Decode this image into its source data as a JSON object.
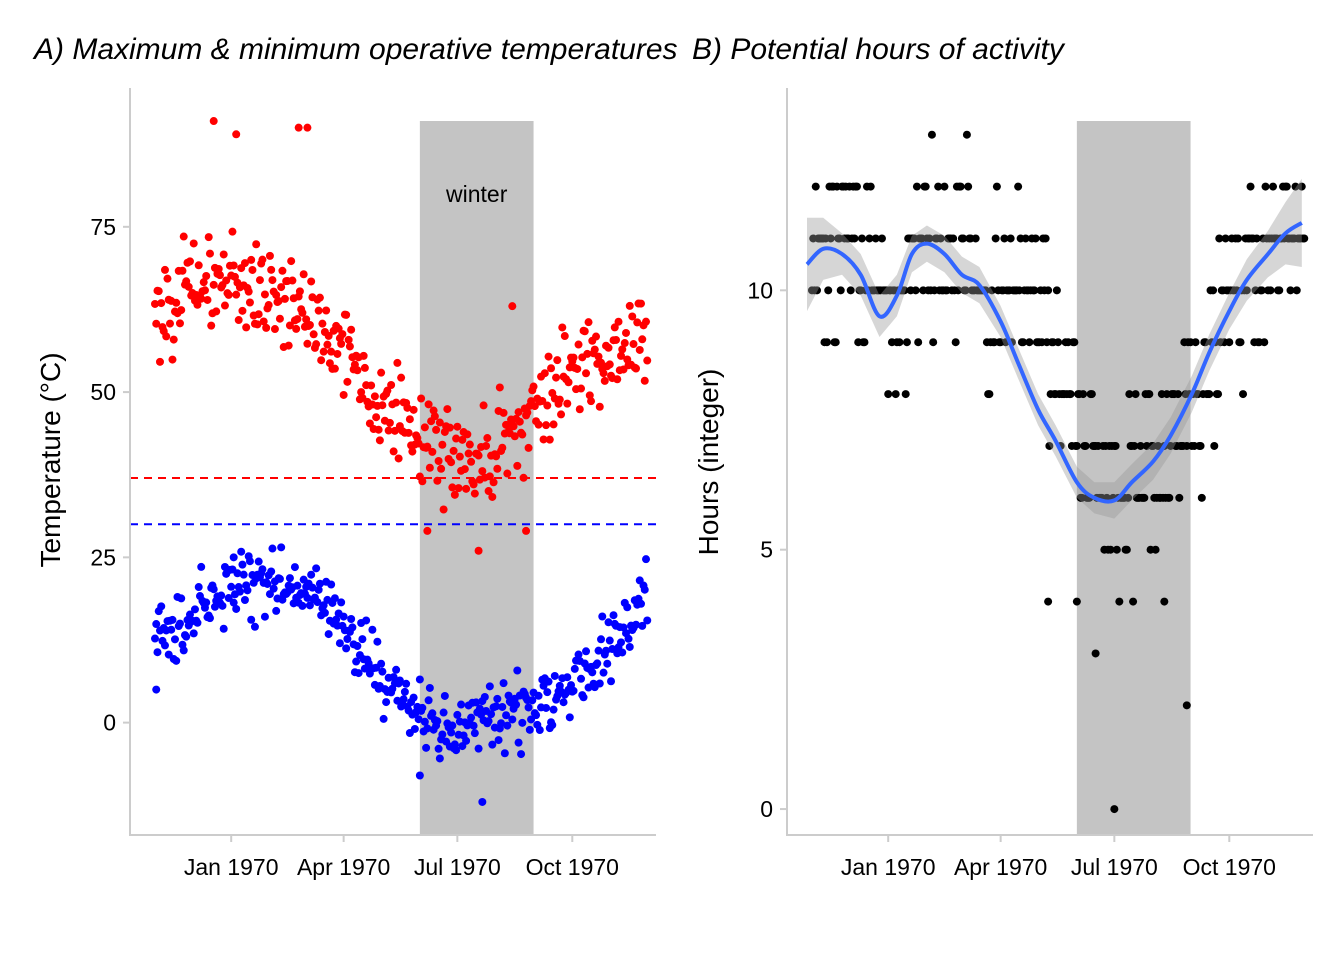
{
  "chart_data": [
    {
      "id": "A",
      "type": "scatter",
      "title": "A) Maximum & minimum operative temperatures",
      "xlabel": "",
      "ylabel": "Temperature (°C)",
      "x_axis": {
        "type": "date",
        "range": [
          "1969-10-12",
          "1970-12-07"
        ],
        "ticks": [
          "1970-01-01",
          "1970-04-01",
          "1970-07-01",
          "1970-10-01"
        ],
        "tick_labels": [
          "Jan 1970",
          "Apr 1970",
          "Jul 1970",
          "Oct 1970"
        ]
      },
      "y_axis": {
        "range": [
          -17,
          96
        ],
        "ticks": [
          0,
          25,
          50,
          75
        ],
        "tick_labels": [
          "0",
          "25",
          "50",
          "75"
        ]
      },
      "grid": false,
      "shaded_region": {
        "x_start": "1970-06-01",
        "x_end": "1970-08-31",
        "label": "winter",
        "label_y": 80,
        "color": "#c4c4c4"
      },
      "reference_lines": [
        {
          "y": 37,
          "color": "#ff0000",
          "style": "dashed"
        },
        {
          "y": 30,
          "color": "#0000ff",
          "style": "dashed"
        }
      ],
      "series": [
        {
          "color": "#ff0000",
          "description_x": "daily 1969-11-01 .. 1970-11-30",
          "anchors_x": [
            "1969-11-01",
            "1969-12-01",
            "1970-01-01",
            "1970-02-01",
            "1970-03-01",
            "1970-04-01",
            "1970-05-01",
            "1970-06-01",
            "1970-07-01",
            "1970-08-01",
            "1970-09-01",
            "1970-10-01",
            "1970-11-01",
            "1970-11-30"
          ],
          "anchors_y": [
            62,
            66,
            67,
            65,
            62,
            57,
            48,
            43,
            40,
            41,
            47,
            53,
            57,
            58
          ],
          "spread": 5,
          "outliers": [
            {
              "x": "1969-12-18",
              "y": 91
            },
            {
              "x": "1970-01-05",
              "y": 89
            },
            {
              "x": "1970-02-24",
              "y": 90
            },
            {
              "x": "1970-03-03",
              "y": 90
            },
            {
              "x": "1970-08-14",
              "y": 63
            },
            {
              "x": "1970-07-18",
              "y": 26
            },
            {
              "x": "1970-06-07",
              "y": 29
            },
            {
              "x": "1970-08-25",
              "y": 29
            }
          ]
        },
        {
          "color": "#0000ff",
          "description_x": "daily 1969-11-01 .. 1970-11-30",
          "anchors_x": [
            "1969-11-01",
            "1969-12-01",
            "1970-01-01",
            "1970-02-01",
            "1970-03-01",
            "1970-04-01",
            "1970-05-01",
            "1970-06-01",
            "1970-07-01",
            "1970-08-01",
            "1970-09-01",
            "1970-10-01",
            "1970-11-01",
            "1970-11-30"
          ],
          "anchors_y": [
            12,
            17,
            20,
            21,
            20,
            15,
            7,
            1,
            -1,
            1,
            2,
            7,
            12,
            19
          ],
          "spread": 3.5,
          "outliers": [
            {
              "x": "1970-01-03",
              "y": 25
            },
            {
              "x": "1970-07-21",
              "y": -12
            },
            {
              "x": "1970-06-01",
              "y": -8
            },
            {
              "x": "1969-11-02",
              "y": 5
            }
          ]
        }
      ]
    },
    {
      "id": "B",
      "type": "scatter",
      "title": "B) Potential hours of activity",
      "xlabel": "",
      "ylabel": "Hours (integer)",
      "x_axis": {
        "type": "date",
        "range": [
          "1969-10-12",
          "1970-12-07"
        ],
        "ticks": [
          "1970-01-01",
          "1970-04-01",
          "1970-07-01",
          "1970-10-01"
        ],
        "tick_labels": [
          "Jan 1970",
          "Apr 1970",
          "Jul 1970",
          "Oct 1970"
        ]
      },
      "y_axis": {
        "range": [
          -0.5,
          13.9
        ],
        "ticks": [
          0,
          5,
          10
        ],
        "tick_labels": [
          "0",
          "5",
          "10"
        ]
      },
      "grid": false,
      "shaded_region": {
        "x_start": "1970-06-01",
        "x_end": "1970-08-31",
        "color": "#c4c4c4"
      },
      "points": {
        "color": "#000000",
        "description_x": "daily 1969-11-01 .. 1970-11-30, integer hours",
        "anchors_x": [
          "1969-11-01",
          "1969-12-01",
          "1970-01-01",
          "1970-02-01",
          "1970-03-01",
          "1970-04-01",
          "1970-05-01",
          "1970-06-01",
          "1970-07-01",
          "1970-08-01",
          "1970-09-01",
          "1970-10-01",
          "1970-11-01",
          "1970-11-30"
        ],
        "anchors_y": [
          10.6,
          10.7,
          9.4,
          10.8,
          10.6,
          10.1,
          9.4,
          7.2,
          6.0,
          6.4,
          7.8,
          9.6,
          10.9,
          11.3
        ],
        "spread": 2.2,
        "outliers": [
          {
            "x": "1970-07-01",
            "y": 0
          },
          {
            "x": "1970-08-28",
            "y": 2
          },
          {
            "x": "1970-06-16",
            "y": 3
          },
          {
            "x": "1970-05-09",
            "y": 4
          },
          {
            "x": "1970-06-01",
            "y": 4
          },
          {
            "x": "1970-08-10",
            "y": 4
          }
        ]
      },
      "smooth": {
        "color": "#3366ff",
        "band_color": "#999999",
        "x": [
          "1969-10-28",
          "1969-11-10",
          "1969-11-25",
          "1969-12-10",
          "1969-12-25",
          "1970-01-08",
          "1970-01-20",
          "1970-02-01",
          "1970-02-15",
          "1970-03-01",
          "1970-03-15",
          "1970-04-01",
          "1970-04-15",
          "1970-05-01",
          "1970-05-15",
          "1970-06-01",
          "1970-06-15",
          "1970-07-01",
          "1970-07-15",
          "1970-08-01",
          "1970-08-15",
          "1970-09-01",
          "1970-09-15",
          "1970-10-01",
          "1970-10-15",
          "1970-11-01",
          "1970-11-15",
          "1970-11-28"
        ],
        "y": [
          10.5,
          10.8,
          10.7,
          10.3,
          9.5,
          9.9,
          10.7,
          10.9,
          10.7,
          10.3,
          10.1,
          9.4,
          8.6,
          7.7,
          7.1,
          6.3,
          6.0,
          5.95,
          6.3,
          6.7,
          7.2,
          8.0,
          8.8,
          9.6,
          10.2,
          10.7,
          11.1,
          11.3
        ],
        "band": [
          0.9,
          0.6,
          0.4,
          0.4,
          0.4,
          0.4,
          0.35,
          0.35,
          0.35,
          0.35,
          0.35,
          0.3,
          0.3,
          0.3,
          0.3,
          0.3,
          0.3,
          0.35,
          0.35,
          0.35,
          0.35,
          0.35,
          0.35,
          0.35,
          0.4,
          0.45,
          0.6,
          0.85
        ]
      }
    }
  ]
}
